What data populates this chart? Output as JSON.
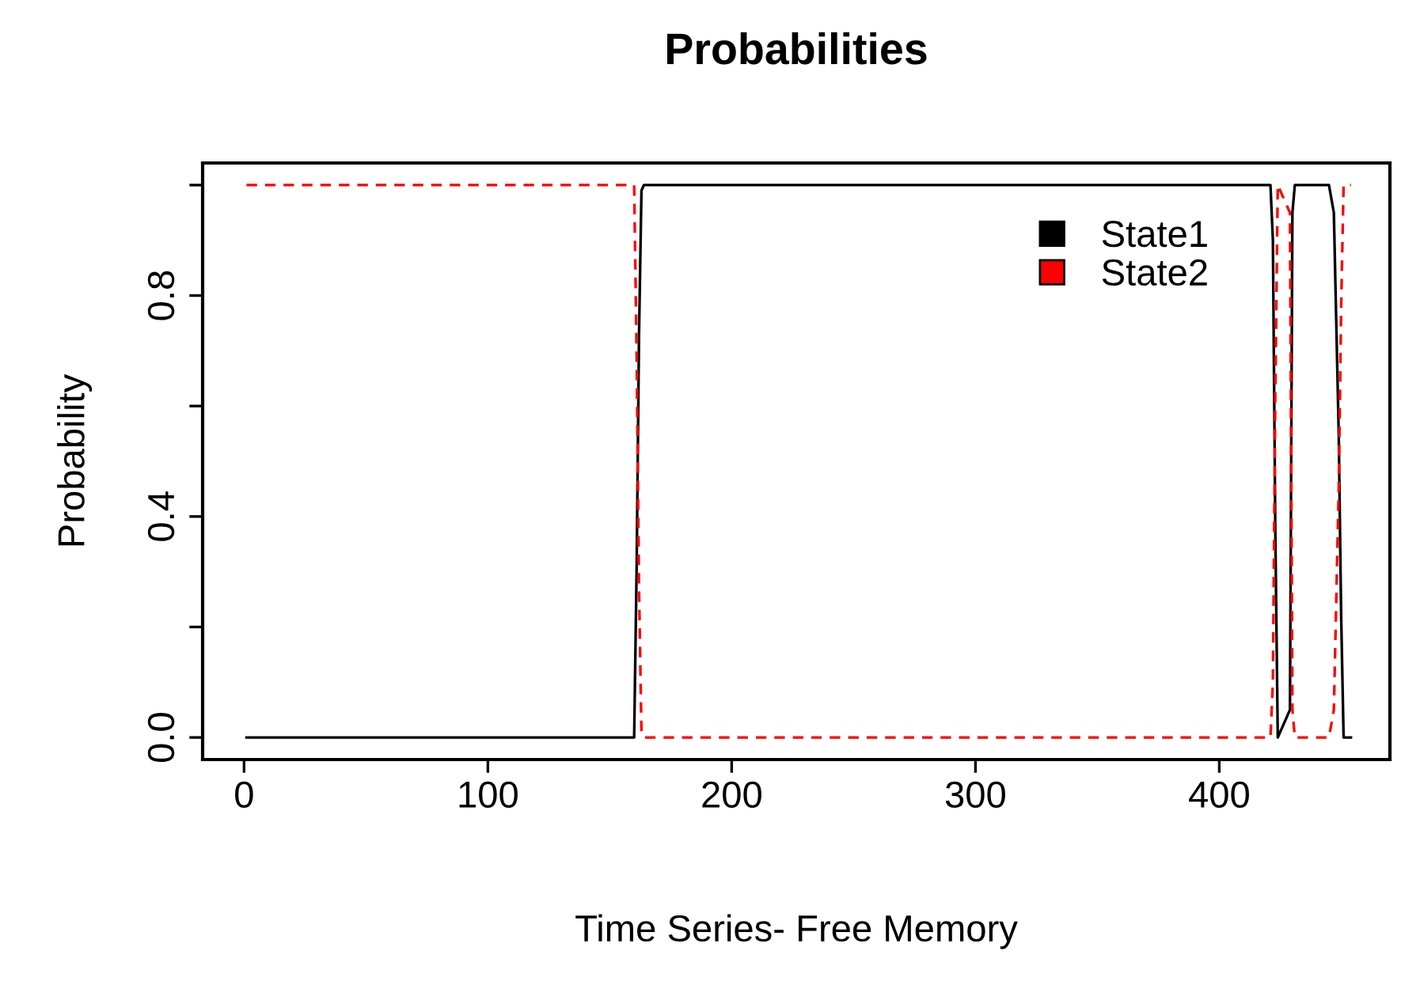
{
  "chart_data": {
    "type": "line",
    "title": "Probabilities",
    "xlabel": "Time Series- Free Memory",
    "ylabel": "Probability",
    "xlim": [
      -17,
      470
    ],
    "ylim": [
      -0.04,
      1.04
    ],
    "xticks": [
      0,
      100,
      200,
      300,
      400
    ],
    "yticks": [
      {
        "value": 0,
        "label": "0.0"
      },
      {
        "value": 0.2,
        "label": null
      },
      {
        "value": 0.4,
        "label": "0.4"
      },
      {
        "value": 0.6,
        "label": null
      },
      {
        "value": 0.8,
        "label": "0.8"
      },
      {
        "value": 1.0,
        "label": null
      }
    ],
    "grid": false,
    "legend": "top right",
    "marker": "none",
    "series": [
      {
        "name": "State1",
        "color": "#000000",
        "line_style": "solid",
        "x": [
          1,
          160,
          161,
          162,
          163,
          164,
          421,
          422,
          423,
          424,
          429,
          430,
          431,
          445,
          447,
          449,
          450,
          451,
          454
        ],
        "values": [
          0,
          0,
          0.3,
          0.73,
          0.99,
          1,
          1,
          0.9,
          0.37,
          0,
          0.05,
          0.95,
          1,
          1,
          0.95,
          0.55,
          0.22,
          0,
          0
        ]
      },
      {
        "name": "State2",
        "color": "#ff0000",
        "line_style": "dashed",
        "x": [
          1,
          160,
          161,
          162,
          163,
          164,
          421,
          422,
          423,
          424,
          429,
          430,
          431,
          445,
          447,
          449,
          450,
          451,
          454
        ],
        "values": [
          1,
          1,
          0.7,
          0.27,
          0.01,
          0,
          0,
          0.1,
          0.63,
          1,
          0.95,
          0.05,
          0,
          0,
          0.05,
          0.45,
          0.78,
          1,
          1
        ]
      }
    ]
  }
}
